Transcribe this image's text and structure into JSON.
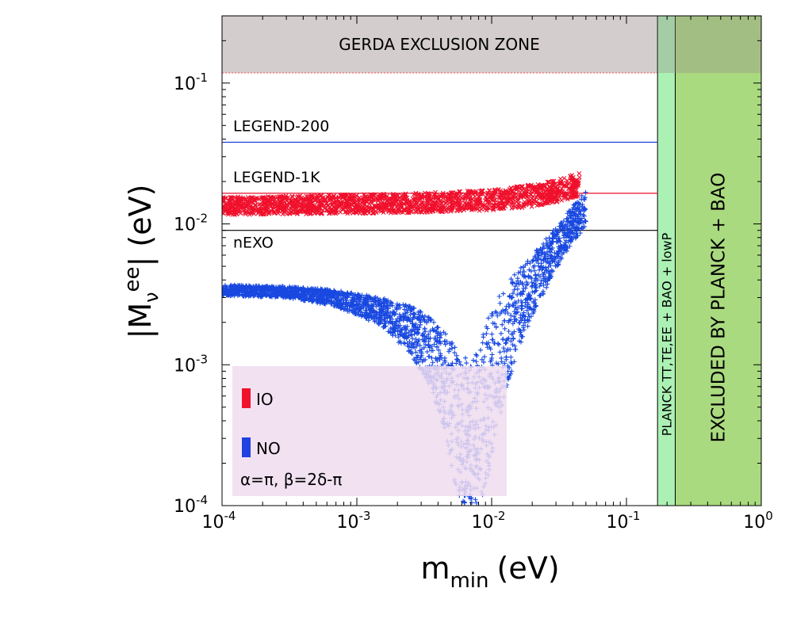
{
  "chart_data": {
    "type": "scatter",
    "xlabel": {
      "main": "m",
      "sub": "min",
      "unit": "(eV)"
    },
    "ylabel": {
      "prefix": "|M",
      "sub": "ν",
      "sup": "ee",
      "suffix": "| (eV)"
    },
    "xscale": "log",
    "yscale": "log",
    "xlim": [
      0.0001,
      1
    ],
    "ylim": [
      0.0001,
      0.3
    ],
    "xticks": [
      {
        "value": 0.0001,
        "base": "10",
        "exp": "-4"
      },
      {
        "value": 0.001,
        "base": "10",
        "exp": "-3"
      },
      {
        "value": 0.01,
        "base": "10",
        "exp": "-2"
      },
      {
        "value": 0.1,
        "base": "10",
        "exp": "-1"
      },
      {
        "value": 1,
        "base": "10",
        "exp": "0"
      }
    ],
    "yticks": [
      {
        "value": 0.0001,
        "base": "10",
        "exp": "-4"
      },
      {
        "value": 0.001,
        "base": "10",
        "exp": "-3"
      },
      {
        "value": 0.01,
        "base": "10",
        "exp": "-2"
      },
      {
        "value": 0.1,
        "base": "10",
        "exp": "-1"
      }
    ],
    "regions": [
      {
        "label": "GERDA EXCLUSION ZONE",
        "y_from": 0.118,
        "y_to": 0.3,
        "color": "#d3cdcd",
        "boundary_color": "#ff5050"
      },
      {
        "label": "PLANCK TT,TE,EE + BAO + lowP",
        "x_from": 0.17,
        "x_to": 0.23,
        "color": "#a8f0b0"
      },
      {
        "label": "EXCLUDED BY PLANCK + BAO",
        "x_from": 0.23,
        "x_to": 1,
        "color": "#a5d878"
      }
    ],
    "reference_lines": [
      {
        "label": "LEGEND-200",
        "y": 0.038,
        "color": "#1c3fd6"
      },
      {
        "label": "LEGEND-1K",
        "y": 0.0165,
        "color": "#e8102c"
      },
      {
        "label": "nEXO",
        "y": 0.009,
        "color": "#000000"
      }
    ],
    "series": [
      {
        "name": "IO",
        "color": "#f0102c",
        "marker": "x",
        "band": {
          "x": [
            0.0001,
            0.0003,
            0.001,
            0.003,
            0.01,
            0.02,
            0.03,
            0.045
          ],
          "y_low": [
            0.0116,
            0.0117,
            0.0118,
            0.012,
            0.0125,
            0.0132,
            0.0142,
            0.0155
          ],
          "y_high": [
            0.0155,
            0.0158,
            0.0162,
            0.0166,
            0.0175,
            0.019,
            0.0205,
            0.023
          ]
        }
      },
      {
        "name": "NO",
        "color": "#1848e0",
        "marker": "+",
        "band": {
          "x": [
            0.0001,
            0.0003,
            0.0007,
            0.0015,
            0.0025,
            0.0035,
            0.0045,
            0.0055,
            0.0065,
            0.0075,
            0.0085,
            0.01,
            0.0125,
            0.016,
            0.02,
            0.03,
            0.04,
            0.05
          ],
          "y_low": [
            0.0031,
            0.003,
            0.0026,
            0.0019,
            0.0012,
            0.0007,
            0.00035,
            0.00012,
            0.0001,
            0.0001,
            0.0001,
            0.00022,
            0.0006,
            0.0013,
            0.0022,
            0.0048,
            0.0075,
            0.0095
          ],
          "y_high": [
            0.0037,
            0.0036,
            0.0034,
            0.003,
            0.0026,
            0.0022,
            0.0017,
            0.0013,
            0.0011,
            0.0012,
            0.0016,
            0.0025,
            0.0036,
            0.0048,
            0.006,
            0.0095,
            0.0135,
            0.0175
          ]
        }
      }
    ],
    "legend": {
      "placement": "bottom-left",
      "box_color": "#efdcee",
      "entries": [
        {
          "label": "IO",
          "color": "#f0102c"
        },
        {
          "label": "NO",
          "color": "#2040e0"
        }
      ],
      "parameters": "α=π, β=2δ-π"
    }
  }
}
